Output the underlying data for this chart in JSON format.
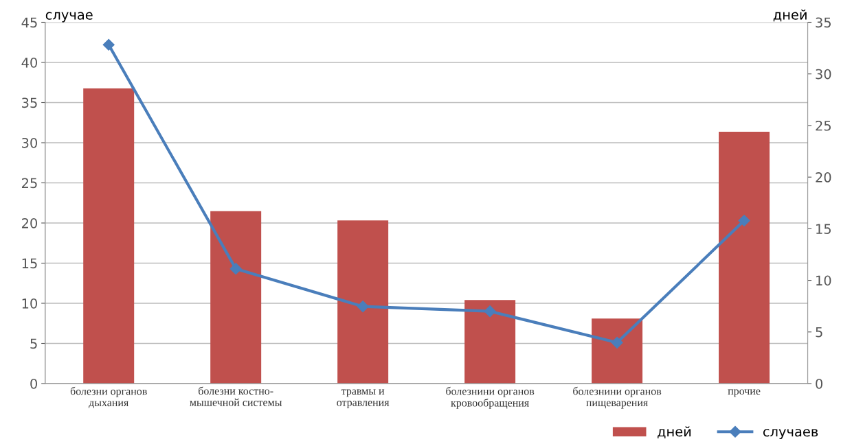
{
  "chart_data": {
    "type": "bar",
    "ylabel": "случае",
    "y2label": "дней",
    "categories": [
      "болезни органов\nдыхания",
      "болезни костно-\nмышечной системы",
      "травмы и\nотравления",
      "болезнини органов\nкровообращения",
      "болезнини органов\nпищеварения",
      "прочие"
    ],
    "series": [
      {
        "name": "дней",
        "axis": "y2",
        "color": "#c0504d",
        "values": [
          28.6,
          16.7,
          15.8,
          8.1,
          6.3,
          24.4
        ]
      },
      {
        "name": "случаев",
        "type": "line",
        "color": "#4a7ebb",
        "marker": "diamond",
        "values": [
          42.2,
          14.3,
          9.6,
          9.0,
          5.1,
          20.3
        ]
      }
    ],
    "ylim": [
      0,
      45
    ],
    "yticks": [
      0,
      5,
      10,
      15,
      20,
      25,
      30,
      35,
      40,
      45
    ],
    "y2lim": [
      0,
      35
    ],
    "y2ticks": [
      0,
      5,
      10,
      15,
      20,
      25,
      30,
      35
    ],
    "grid": "y",
    "legend": "bottom right"
  }
}
